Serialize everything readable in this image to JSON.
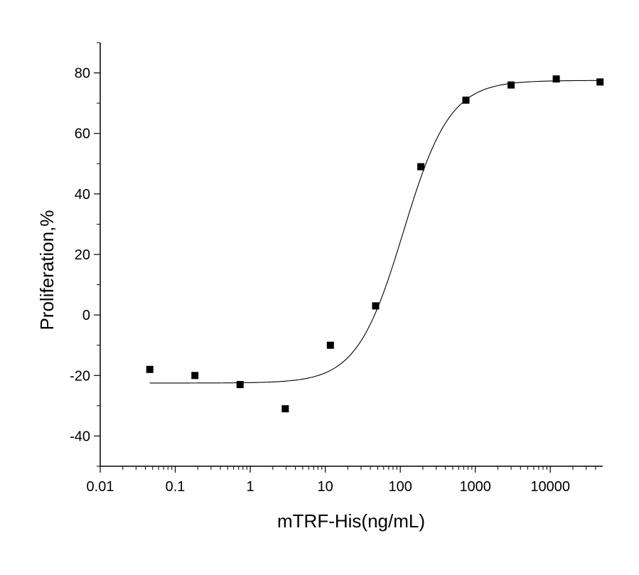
{
  "chart_data": {
    "type": "scatter",
    "title": "",
    "xlabel": "mTRF-His(ng/mL)",
    "ylabel": "Proliferation,%",
    "xscale": "log",
    "xlim": [
      0.01,
      50000
    ],
    "ylim": [
      -50,
      90
    ],
    "x_ticks": [
      0.01,
      0.1,
      1,
      10,
      100,
      1000,
      10000
    ],
    "x_tick_labels": [
      "0.01",
      "0.1",
      "1",
      "10",
      "100",
      "1000",
      "10000"
    ],
    "y_ticks": [
      -40,
      -20,
      0,
      20,
      40,
      60,
      80
    ],
    "y_tick_labels": [
      "-40",
      "-20",
      "0",
      "20",
      "40",
      "60",
      "80"
    ],
    "grid": false,
    "legend": "none",
    "marker": "square",
    "marker_color": "#000000",
    "line_color": "#000000",
    "series": [
      {
        "x": [
          0.0458,
          0.183,
          0.732,
          2.93,
          11.7,
          46.9,
          188,
          750,
          3000,
          12000,
          46000
        ],
        "y": [
          -18,
          -20,
          -23,
          -31,
          -10,
          3,
          49,
          71,
          76,
          78,
          77
        ]
      }
    ],
    "fit": {
      "model": "4PL",
      "bottom": -22.5,
      "top": 77.5,
      "ec50": 110,
      "hill": 1.4,
      "x_range": [
        0.0458,
        46000
      ]
    }
  }
}
